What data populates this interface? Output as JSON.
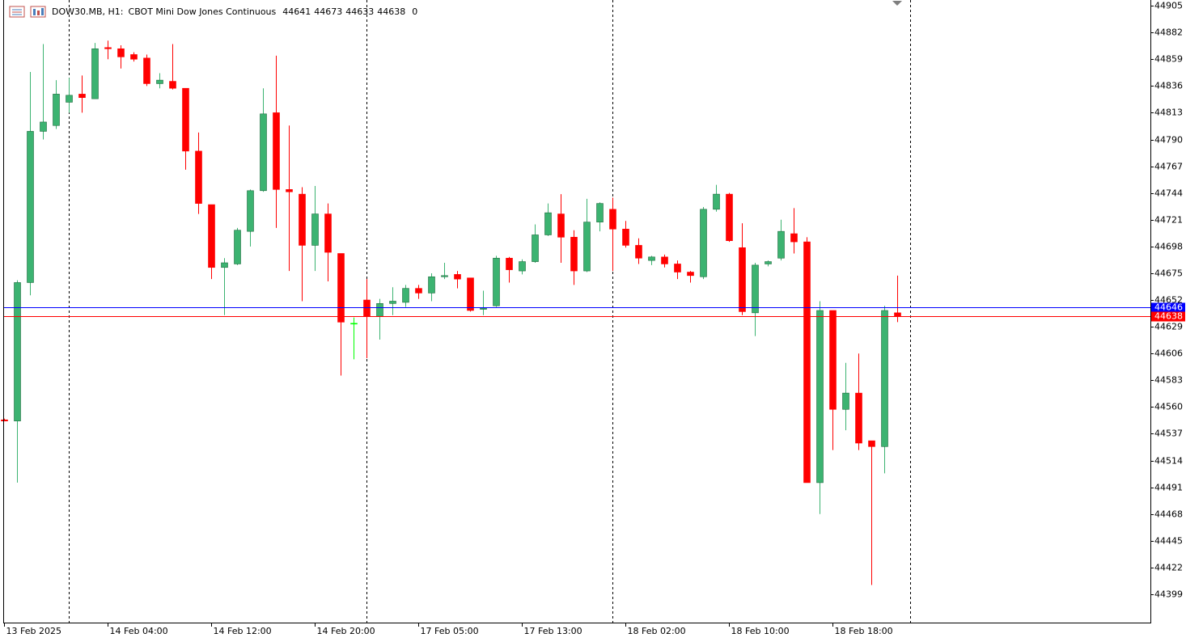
{
  "chart_data": {
    "type": "candlestick",
    "symbol": "DOW30.MB, H1:",
    "description": "CBOT Mini Dow Jones Continuous",
    "spread": 0,
    "categories": [
      "13 Feb 2025",
      null,
      null,
      null,
      null,
      null,
      null,
      null,
      "14 Feb 04:00",
      null,
      null,
      null,
      null,
      null,
      null,
      null,
      "14 Feb 12:00",
      null,
      null,
      null,
      null,
      null,
      null,
      null,
      "14 Feb 20:00",
      null,
      null,
      null,
      null,
      null,
      null,
      null,
      "17 Feb 05:00",
      null,
      null,
      null,
      null,
      null,
      null,
      null,
      "17 Feb 13:00",
      null,
      null,
      null,
      null,
      null,
      null,
      null,
      "18 Feb 02:00",
      null,
      null,
      null,
      null,
      null,
      null,
      null,
      "18 Feb 10:00",
      null,
      null,
      null,
      null,
      null,
      null,
      null,
      "18 Feb 18:00",
      null,
      null,
      null,
      null,
      null
    ],
    "open": [
      44549,
      44548,
      44667,
      44797,
      44802,
      44822,
      44829,
      44825,
      44869,
      44868,
      44863,
      44860,
      44838,
      44840,
      44834,
      44780,
      44734,
      44680,
      44683,
      44711,
      44746,
      44813,
      44747,
      44743,
      44699,
      44726,
      44692,
      44632,
      44652,
      44638,
      44649,
      44650,
      44662,
      44658,
      44672,
      44674,
      44671,
      44644,
      44647,
      44688,
      44677,
      44685,
      44708,
      44726,
      44706,
      44677,
      44719,
      44730,
      44713,
      44699,
      44686,
      44689,
      44683,
      44676,
      44672,
      44730,
      44743,
      44697,
      44641,
      44683,
      44688,
      44709,
      44702,
      44495,
      44643,
      44558,
      44572,
      44531,
      44526,
      44641
    ],
    "high": [
      44550,
      44669,
      44848,
      44872,
      44841,
      44843,
      44845,
      44873,
      44875,
      44871,
      44865,
      44863,
      44847,
      44872,
      44834,
      44796,
      44734,
      44688,
      44714,
      44747,
      44834,
      44862,
      44802,
      44749,
      44750,
      44735,
      44692,
      44637,
      44670,
      44653,
      44663,
      44665,
      44665,
      44675,
      44684,
      44677,
      44671,
      44660,
      44690,
      44689,
      44687,
      44717,
      44735,
      44743,
      44712,
      44739,
      44736,
      44740,
      44720,
      44705,
      44690,
      44691,
      44686,
      44677,
      44732,
      44751,
      44744,
      44718,
      44684,
      44686,
      44721,
      44731,
      44706,
      44651,
      44643,
      44598,
      44606,
      44531,
      44647,
      44673
    ],
    "low": [
      44548,
      44495,
      44656,
      44790,
      44799,
      44813,
      44813,
      44825,
      44859,
      44851,
      44857,
      44836,
      44834,
      44833,
      44764,
      44726,
      44670,
      44639,
      44682,
      44698,
      44745,
      44714,
      44677,
      44651,
      44677,
      44668,
      44587,
      44601,
      44602,
      44618,
      44639,
      44646,
      44653,
      44651,
      44670,
      44662,
      44642,
      44639,
      44646,
      44667,
      44674,
      44684,
      44707,
      44684,
      44665,
      44676,
      44711,
      44677,
      44697,
      44683,
      44682,
      44680,
      44670,
      44667,
      44670,
      44728,
      44702,
      44639,
      44621,
      44681,
      44686,
      44692,
      44495,
      44468,
      44523,
      44540,
      44523,
      44407,
      44503,
      44633
    ],
    "close": [
      44548,
      44667,
      44797,
      44805,
      44829,
      44828,
      44826,
      44868,
      44868,
      44861,
      44859,
      44838,
      44841,
      44834,
      44780,
      44735,
      44680,
      44684,
      44712,
      44746,
      44812,
      44747,
      44745,
      44699,
      44726,
      44693,
      44633,
      44632,
      44638,
      44649,
      44651,
      44662,
      44658,
      44672,
      44673,
      44670,
      44643,
      44645,
      44688,
      44678,
      44685,
      44708,
      44727,
      44706,
      44677,
      44719,
      44735,
      44713,
      44699,
      44688,
      44689,
      44683,
      44676,
      44673,
      44730,
      44743,
      44703,
      44642,
      44682,
      44685,
      44711,
      44702,
      44495,
      44643,
      44558,
      44572,
      44529,
      44526,
      44643,
      44638
    ],
    "up_color": "#3cb371",
    "down_color": "#ff0000",
    "doji_color": "#00ff00",
    "ylim": [
      44374.7,
      44909.9
    ],
    "yticks": [
      44399,
      44422,
      44445,
      44468,
      44491,
      44514,
      44537,
      44560,
      44583,
      44606,
      44629,
      44652,
      44675,
      44698,
      44721,
      44744,
      44767,
      44790,
      44813,
      44836,
      44859,
      44882,
      44905
    ],
    "price_lines": [
      {
        "value": 44646,
        "color": "#0000ff"
      },
      {
        "value": 44638,
        "color": "#ff0000"
      }
    ]
  }
}
